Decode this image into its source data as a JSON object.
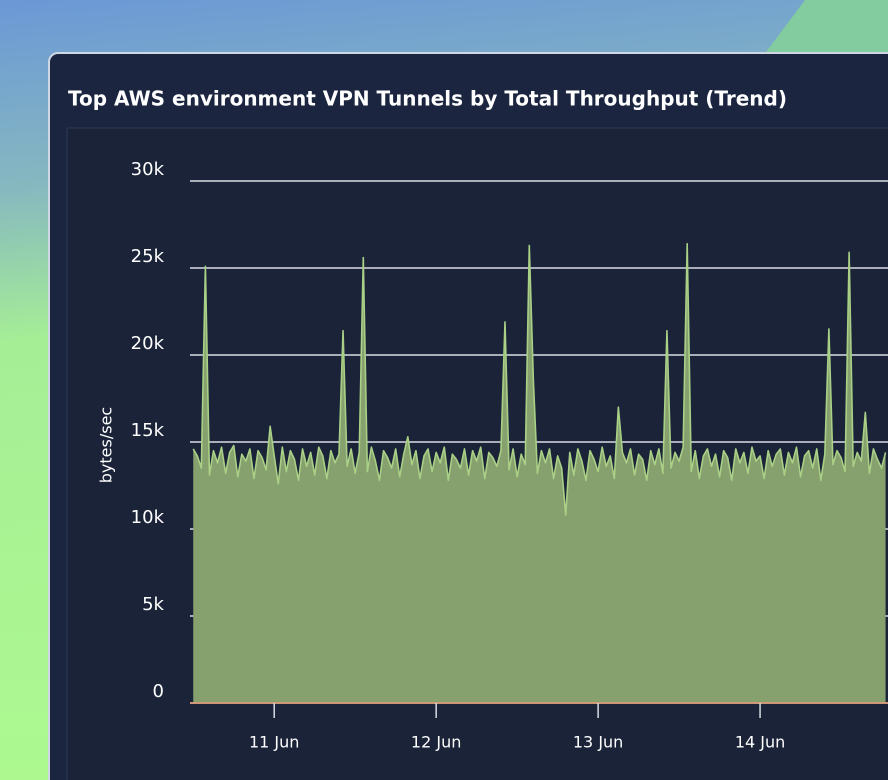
{
  "chart_data": {
    "type": "area",
    "title": "Top AWS environment VPN Tunnels by Total Throughput (Trend)",
    "y_label": "bytes/sec",
    "x": [
      10.5,
      10.525,
      10.55,
      10.575,
      10.6,
      10.625,
      10.65,
      10.675,
      10.7,
      10.725,
      10.75,
      10.775,
      10.8,
      10.825,
      10.85,
      10.875,
      10.9,
      10.925,
      10.95,
      10.975,
      11,
      11.025,
      11.05,
      11.075,
      11.1,
      11.125,
      11.15,
      11.175,
      11.2,
      11.225,
      11.25,
      11.275,
      11.3,
      11.325,
      11.35,
      11.375,
      11.4,
      11.425,
      11.45,
      11.475,
      11.5,
      11.525,
      11.55,
      11.575,
      11.6,
      11.625,
      11.65,
      11.675,
      11.7,
      11.725,
      11.75,
      11.775,
      11.8,
      11.825,
      11.85,
      11.875,
      11.9,
      11.925,
      11.95,
      11.975,
      12,
      12.025,
      12.05,
      12.075,
      12.1,
      12.125,
      12.15,
      12.175,
      12.2,
      12.225,
      12.25,
      12.275,
      12.3,
      12.325,
      12.35,
      12.375,
      12.4,
      12.425,
      12.45,
      12.475,
      12.5,
      12.525,
      12.55,
      12.575,
      12.6,
      12.625,
      12.65,
      12.675,
      12.7,
      12.725,
      12.75,
      12.775,
      12.8,
      12.825,
      12.85,
      12.875,
      12.9,
      12.925,
      12.95,
      12.975,
      13,
      13.025,
      13.05,
      13.075,
      13.1,
      13.125,
      13.15,
      13.175,
      13.2,
      13.225,
      13.25,
      13.275,
      13.3,
      13.325,
      13.35,
      13.375,
      13.4,
      13.425,
      13.45,
      13.475,
      13.5,
      13.525,
      13.55,
      13.575,
      13.6,
      13.625,
      13.65,
      13.675,
      13.7,
      13.725,
      13.75,
      13.775,
      13.8,
      13.825,
      13.85,
      13.875,
      13.9,
      13.925,
      13.95,
      13.975,
      14,
      14.025,
      14.05,
      14.075,
      14.1,
      14.125,
      14.15,
      14.175,
      14.2,
      14.225,
      14.25,
      14.275,
      14.3,
      14.325,
      14.35,
      14.375,
      14.4,
      14.425,
      14.45,
      14.475,
      14.5,
      14.525,
      14.55,
      14.575,
      14.6,
      14.625,
      14.65,
      14.675,
      14.7,
      14.725,
      14.75,
      14.775
    ],
    "series": [
      {
        "name": "bytes/sec",
        "color": "#a9d086",
        "fill": "#86a06e",
        "values": [
          14600,
          14200,
          13500,
          25100,
          13100,
          14500,
          13800,
          14700,
          13200,
          14400,
          14800,
          13000,
          14300,
          13900,
          14600,
          12900,
          14500,
          14100,
          13400,
          15900,
          14200,
          12600,
          14700,
          13300,
          14500,
          14000,
          12800,
          14600,
          13600,
          14400,
          13100,
          14700,
          14200,
          12900,
          14500,
          13800,
          14300,
          21400,
          13600,
          14600,
          13200,
          14400,
          25600,
          13300,
          14700,
          13900,
          12800,
          14500,
          14100,
          13500,
          14600,
          13000,
          14300,
          15300,
          13700,
          14500,
          12900,
          14200,
          14600,
          13300,
          14400,
          13800,
          14700,
          12800,
          14300,
          14000,
          13500,
          14600,
          13100,
          14500,
          13900,
          14700,
          12900,
          14400,
          14100,
          13600,
          14500,
          21900,
          13400,
          14600,
          13000,
          14300,
          13700,
          26300,
          18600,
          13200,
          14500,
          13800,
          14600,
          12900,
          14200,
          13500,
          10800,
          14400,
          13100,
          14600,
          13900,
          12800,
          14500,
          14000,
          13300,
          14700,
          13600,
          14200,
          12900,
          17000,
          14400,
          13800,
          14600,
          13100,
          14300,
          14000,
          12800,
          14500,
          13700,
          14600,
          13200,
          21400,
          13500,
          14400,
          13900,
          14700,
          26400,
          13300,
          14500,
          12900,
          14200,
          14600,
          13600,
          14300,
          13000,
          14500,
          14100,
          12800,
          14600,
          13800,
          14400,
          13200,
          14700,
          13900,
          14200,
          12900,
          14500,
          13600,
          14300,
          14600,
          13100,
          14400,
          13800,
          14700,
          13000,
          14200,
          14500,
          13500,
          14600,
          12800,
          14300,
          21500,
          13700,
          14500,
          14100,
          13300,
          25900,
          13600,
          14400,
          13900,
          16700,
          13200,
          14600,
          14000,
          13500,
          14400
        ]
      }
    ],
    "xlim": [
      10.48,
      14.79
    ],
    "xticks": [
      {
        "value": 11,
        "label": "11 Jun"
      },
      {
        "value": 12,
        "label": "12 Jun"
      },
      {
        "value": 13,
        "label": "13 Jun"
      },
      {
        "value": 14,
        "label": "14 Jun"
      }
    ],
    "ylim": [
      0,
      30000
    ],
    "yticks": [
      {
        "value": 0,
        "label": "0"
      },
      {
        "value": 5000,
        "label": "5k"
      },
      {
        "value": 10000,
        "label": "10k"
      },
      {
        "value": 15000,
        "label": "15k"
      },
      {
        "value": 20000,
        "label": "20k"
      },
      {
        "value": 25000,
        "label": "25k"
      },
      {
        "value": 30000,
        "label": "30k"
      }
    ],
    "grid": true
  }
}
